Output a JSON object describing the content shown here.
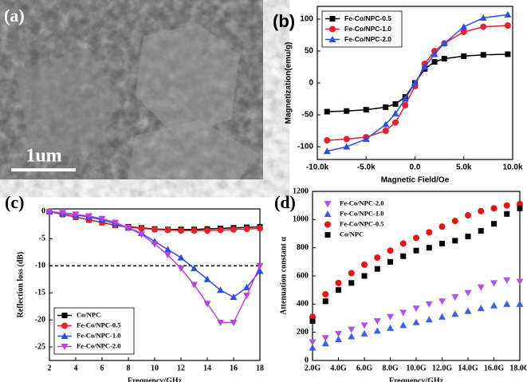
{
  "image_panel": {
    "panel_label": "(a)",
    "scale_bar": "1um"
  },
  "chart_data": [
    {
      "type": "line",
      "panel_label": "(b)",
      "xlabel": "Magnetic Field/Oe",
      "ylabel": "Magnetization(emu/g)",
      "xlim": [
        -10000,
        10000
      ],
      "xticks": [
        {
          "value": -10000,
          "label": "-10.0k"
        },
        {
          "value": -5000,
          "label": "-5.0k"
        },
        {
          "value": 0,
          "label": "0.0"
        },
        {
          "value": 5000,
          "label": "5.0k"
        },
        {
          "value": 10000,
          "label": "10.0k"
        }
      ],
      "ylim": [
        -120,
        120
      ],
      "yticks": [
        -100,
        -50,
        0,
        50,
        100
      ],
      "legend": "upper left",
      "series": [
        {
          "name": "Fe-Co/NPC-0.5",
          "color": "#000000",
          "marker": "square",
          "x": [
            -9000,
            -7000,
            -5000,
            -3000,
            -2000,
            -1000,
            0,
            1000,
            2000,
            3000,
            5000,
            7000,
            9500
          ],
          "values": [
            -45,
            -44,
            -42,
            -38,
            -33,
            -22,
            0,
            22,
            33,
            38,
            42,
            44,
            45
          ]
        },
        {
          "name": "Fe-Co/NPC-1.0",
          "color": "#e8202a",
          "marker": "circle",
          "x": [
            -9000,
            -7000,
            -5000,
            -3000,
            -2000,
            -1000,
            0,
            1000,
            2000,
            3000,
            5000,
            7000,
            9500
          ],
          "values": [
            -90,
            -88,
            -85,
            -75,
            -62,
            -35,
            -5,
            30,
            50,
            62,
            80,
            88,
            90
          ]
        },
        {
          "name": "Fe-Co/NPC-2.0",
          "color": "#2a4ee8",
          "marker": "triangle-up",
          "x": [
            -9000,
            -7000,
            -5000,
            -3000,
            -2000,
            -1000,
            0,
            1000,
            2000,
            3000,
            5000,
            7000,
            9500
          ],
          "values": [
            -107,
            -100,
            -88,
            -65,
            -48,
            -25,
            0,
            25,
            45,
            62,
            88,
            102,
            107
          ]
        }
      ]
    },
    {
      "type": "line",
      "panel_label": "(c)",
      "xlabel": "Frequency/GHz",
      "ylabel": "Reflection loss (dB)",
      "xlim": [
        2,
        18
      ],
      "xticks": [
        2,
        4,
        6,
        8,
        10,
        12,
        14,
        16,
        18
      ],
      "ylim": [
        -27.5,
        0.5
      ],
      "yticks": [
        0,
        -5,
        -10,
        -15,
        -20,
        -25
      ],
      "legend": "lower left",
      "reference_line": {
        "value": -10,
        "style": "dashed"
      },
      "x": [
        2,
        3,
        4,
        5,
        6,
        7,
        8,
        9,
        10,
        11,
        12,
        13,
        14,
        15,
        16,
        17,
        18
      ],
      "series": [
        {
          "name": "Co/NPC",
          "color": "#000000",
          "marker": "square",
          "values": [
            0,
            -0.5,
            -1,
            -1.5,
            -2,
            -2.5,
            -2.8,
            -3,
            -3.2,
            -3.3,
            -3.3,
            -3.3,
            -3.2,
            -3.1,
            -3,
            -2.9,
            -2.8
          ]
        },
        {
          "name": "Fe-Co/NPC-0.5",
          "color": "#e8202a",
          "marker": "circle",
          "values": [
            0,
            -0.5,
            -1,
            -1.5,
            -2,
            -2.5,
            -2.9,
            -3.1,
            -3.3,
            -3.4,
            -3.5,
            -3.5,
            -3.5,
            -3.4,
            -3.3,
            -3.2,
            -3.1
          ]
        },
        {
          "name": "Fe-Co/NPC-1.0",
          "color": "#2a4ee8",
          "marker": "triangle-up",
          "values": [
            0,
            -0.3,
            -0.6,
            -1,
            -1.5,
            -2.2,
            -3,
            -4,
            -5.5,
            -7,
            -8.5,
            -10.5,
            -12.5,
            -14.5,
            -15.8,
            -14,
            -11
          ]
        },
        {
          "name": "Fe-Co/NPC-2.0",
          "color": "#c040e0",
          "marker": "triangle-down",
          "values": [
            0,
            -0.2,
            -0.5,
            -0.8,
            -1.3,
            -2,
            -3,
            -4.2,
            -6,
            -8,
            -10.5,
            -13.5,
            -17,
            -20.5,
            -20.5,
            -15.5,
            -10
          ]
        }
      ]
    },
    {
      "type": "line",
      "panel_label": "(d)",
      "xlabel": "Frequency/GHz",
      "ylabel": "Attenuation constant α",
      "xlim": [
        2,
        18
      ],
      "xticks": [
        {
          "value": 2,
          "label": "2.0G"
        },
        {
          "value": 4,
          "label": "4.0G"
        },
        {
          "value": 6,
          "label": "6.0G"
        },
        {
          "value": 8,
          "label": "8.0G"
        },
        {
          "value": 10,
          "label": "10.0G"
        },
        {
          "value": 12,
          "label": "12.0G"
        },
        {
          "value": 14,
          "label": "14.0G"
        },
        {
          "value": 16,
          "label": "16.0G"
        },
        {
          "value": 18,
          "label": "18.0G"
        }
      ],
      "ylim": [
        0,
        1200
      ],
      "yticks": [
        0,
        200,
        400,
        600,
        800,
        1000,
        1200
      ],
      "legend": "upper left",
      "lines": false,
      "x": [
        2,
        3,
        4,
        5,
        6,
        7,
        8,
        9,
        10,
        11,
        12,
        13,
        14,
        15,
        16,
        17,
        18
      ],
      "series": [
        {
          "name": "Fe-Co/NPC-2.0",
          "color": "#b050f0",
          "marker": "triangle-down",
          "values": [
            130,
            160,
            190,
            220,
            250,
            280,
            310,
            340,
            370,
            400,
            420,
            450,
            480,
            520,
            550,
            570,
            560
          ]
        },
        {
          "name": "Fe-Co/NPC-1.0",
          "color": "#3a5ef0",
          "marker": "triangle-up",
          "values": [
            90,
            120,
            150,
            170,
            190,
            210,
            230,
            250,
            270,
            290,
            310,
            330,
            350,
            370,
            390,
            400,
            400
          ]
        },
        {
          "name": "Fe-Co/NPC-0.5",
          "color": "#f01010",
          "marker": "circle",
          "values": [
            310,
            470,
            550,
            620,
            680,
            730,
            780,
            830,
            870,
            910,
            950,
            990,
            1030,
            1060,
            1080,
            1100,
            1110
          ]
        },
        {
          "name": "Co/NPC",
          "color": "#000000",
          "marker": "square",
          "values": [
            280,
            420,
            500,
            550,
            600,
            650,
            700,
            740,
            780,
            800,
            830,
            850,
            880,
            920,
            970,
            1040,
            1080
          ]
        }
      ]
    }
  ]
}
